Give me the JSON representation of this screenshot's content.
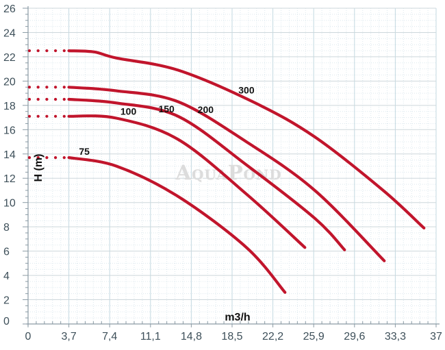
{
  "page": {
    "background": "#ffffff"
  },
  "watermark": {
    "text": "AquaPond"
  },
  "chart_data": {
    "type": "line",
    "title": "",
    "xlabel": "m3/h",
    "ylabel": "H (m)",
    "x_unit": "m3/h",
    "y_unit": "m",
    "xlim": [
      0,
      37
    ],
    "ylim": [
      0,
      26
    ],
    "x_major_tick_step": 3.7,
    "y_major_tick_step": 2,
    "x_minor_tick_step": 0.74,
    "y_minor_tick_step": 0.5,
    "x_tick_labels": [
      "0",
      "3,7",
      "7,4",
      "11,1",
      "14,8",
      "18,5",
      "22,2",
      "25,9",
      "29,6",
      "33,3",
      "37"
    ],
    "y_tick_labels": [
      "0",
      "2",
      "4",
      "6",
      "8",
      "10",
      "12",
      "14",
      "16",
      "18",
      "20",
      "22",
      "24",
      "26"
    ],
    "grid": true,
    "legend_position": "labels-on-curves",
    "colors": {
      "curve": "#c1152c",
      "grid_major_v": "#c3d9e1",
      "grid_major_h": "#cdd7db",
      "grid_minor": "#dce8ee",
      "axis": "#8a9aa4",
      "tick_text": "#3d4f59",
      "label_text": "#121212",
      "watermark": "#dcdcdc"
    },
    "series": [
      {
        "name": "75",
        "dotted_lead_x": [
          0.12,
          3.45
        ],
        "label_pos": [
          5.1,
          14.2
        ],
        "points": [
          [
            3.7,
            13.7
          ],
          [
            8,
            13.0
          ],
          [
            13.6,
            10.5
          ],
          [
            19.8,
            6.3
          ],
          [
            23.3,
            2.6
          ]
        ]
      },
      {
        "name": "100",
        "dotted_lead_x": [
          0.12,
          3.45
        ],
        "label_pos": [
          9.1,
          17.5
        ],
        "points": [
          [
            3.7,
            17.1
          ],
          [
            8,
            16.95
          ],
          [
            13.6,
            15.2
          ],
          [
            19.8,
            10.7
          ],
          [
            25.1,
            6.3
          ]
        ]
      },
      {
        "name": "150",
        "dotted_lead_x": [
          0.12,
          3.45
        ],
        "label_pos": [
          12.55,
          17.7
        ],
        "points": [
          [
            3.7,
            18.5
          ],
          [
            8,
            18.2
          ],
          [
            13.6,
            17.1
          ],
          [
            19.8,
            13.1
          ],
          [
            26,
            8.7
          ],
          [
            28.7,
            6.1
          ]
        ]
      },
      {
        "name": "200",
        "dotted_lead_x": [
          0.12,
          3.45
        ],
        "label_pos": [
          16.1,
          17.65
        ],
        "points": [
          [
            3.7,
            19.5
          ],
          [
            8,
            19.2
          ],
          [
            13.6,
            18.3
          ],
          [
            19.8,
            15.0
          ],
          [
            26,
            11.0
          ],
          [
            32.3,
            5.2
          ]
        ]
      },
      {
        "name": "300",
        "dotted_lead_x": [
          0.12,
          3.45
        ],
        "label_pos": [
          19.8,
          19.25
        ],
        "points": [
          [
            3.7,
            22.5
          ],
          [
            6,
            22.4
          ],
          [
            8,
            21.9
          ],
          [
            13.6,
            20.9
          ],
          [
            20.6,
            18.2
          ],
          [
            26,
            15.4
          ],
          [
            32.2,
            11.0
          ],
          [
            35.9,
            7.9
          ]
        ]
      }
    ]
  }
}
